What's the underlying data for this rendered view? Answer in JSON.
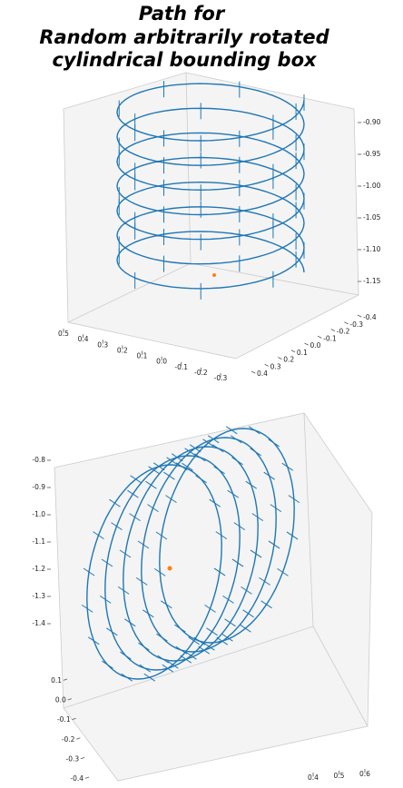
{
  "title_lines": [
    "Path for",
    "Random arbitrarily rotated",
    "cylindrical bounding box"
  ],
  "chart_data": [
    {
      "type": "line3d",
      "xticks": [
        0.5,
        0.4,
        0.3,
        0.2,
        0.1,
        {
          "value": 0,
          "label": "0.0"
        },
        -0.1,
        -0.2,
        -0.3
      ],
      "yticks": [
        0.4,
        0.3,
        0.2,
        0.1,
        {
          "value": 0,
          "label": "0.0"
        },
        -0.1,
        -0.2,
        -0.3,
        -0.4
      ],
      "zticks": [
        {
          "value": -0.9,
          "label": "-0.90"
        },
        -0.95,
        {
          "value": -1,
          "label": "-1.00"
        },
        -1.05,
        {
          "value": -1.1,
          "label": "-1.10"
        },
        -1.15
      ],
      "color": "#1f77b4",
      "grid": true
    },
    {
      "type": "line3d",
      "xticks": [
        0.4,
        0.5,
        0.6
      ],
      "yticks": [
        0.1,
        {
          "value": 0,
          "label": "0.0"
        },
        -0.1,
        -0.2,
        -0.3,
        -0.4
      ],
      "zticks": [
        -0.8,
        -0.9,
        {
          "value": -1,
          "label": "-1.0"
        },
        -1.1,
        -1.2,
        -1.3,
        -1.4
      ],
      "color": "#1f77b4",
      "grid": true
    }
  ]
}
